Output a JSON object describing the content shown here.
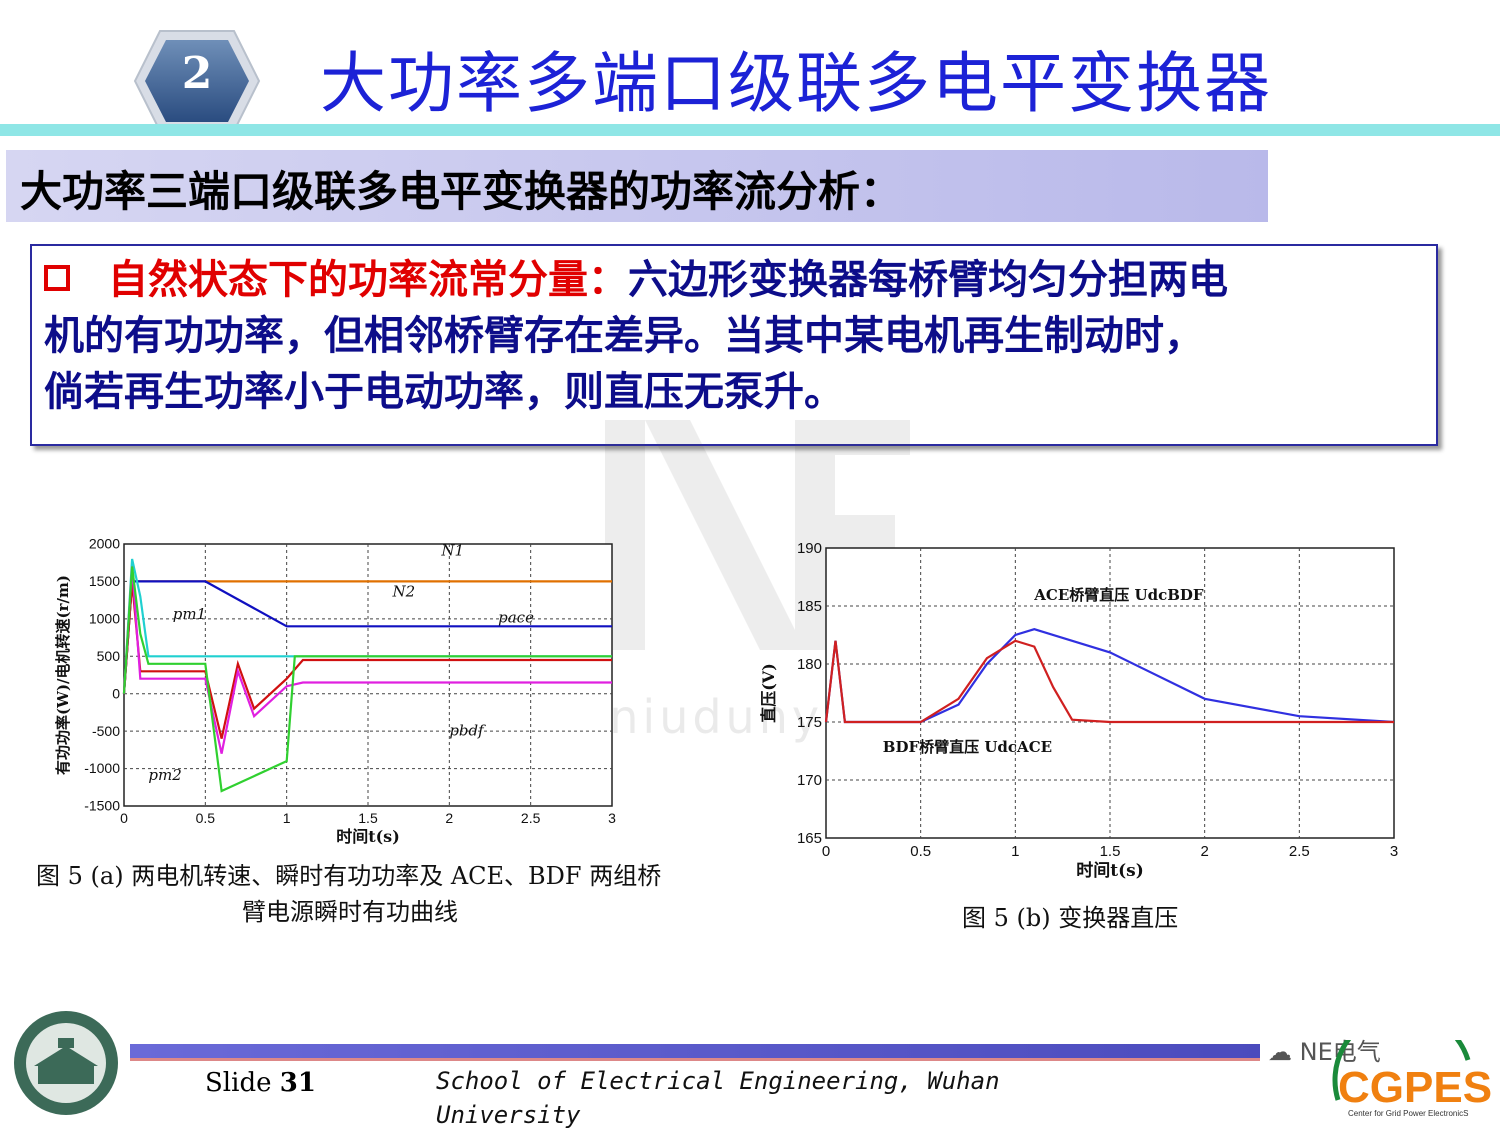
{
  "header": {
    "slide_badge": "2",
    "title": "大功率多端口级联多电平变换器"
  },
  "section": {
    "heading": "大功率三端口级联多电平变换器的功率流分析："
  },
  "note": {
    "lead": "自然状态下的功率流常分量：",
    "body_line1": "六边形变换器每桥臂均匀分担两电",
    "body_line2": "机的有功功率，但相邻桥臂存在差异。当其中某电机再生制动时，",
    "body_line3": "倘若再生功率小于电动功率，则直压无泵升。"
  },
  "watermark": {
    "url": "www.niudunyan.com"
  },
  "figure_a": {
    "caption_line1": "图 5 (a)   两电机转速、瞬时有功功率及 ACE、BDF 两组桥",
    "caption_line2": "臂电源瞬时有功曲线"
  },
  "figure_b": {
    "caption": "图 5 (b)   变换器直压"
  },
  "footer": {
    "slide_label": "Slide",
    "slide_number": "31",
    "school": "School of Electrical Engineering, Wuhan University",
    "wechat": "NE电气",
    "logo_text": "CGPES",
    "logo_sub": "Center for Grid Power ElectronicS"
  },
  "chart_data": [
    {
      "type": "line",
      "ylabel": "有功功率(W)/电机转速(r/m)",
      "xlabel": "时间t(s)",
      "xlim": [
        0,
        3
      ],
      "ylim": [
        -1500,
        2000
      ],
      "x_ticks": [
        "0",
        "0.5",
        "1",
        "1.5",
        "2",
        "2.5",
        "3"
      ],
      "y_ticks": [
        "2000",
        "1500",
        "1000",
        "500",
        "0",
        "-500",
        "-1000",
        "-1500"
      ],
      "grid": true,
      "series": [
        {
          "name": "N1",
          "color": "#e07000",
          "x": [
            0,
            0.05,
            0.1,
            3
          ],
          "y": [
            0,
            1500,
            1500,
            1500
          ]
        },
        {
          "name": "N2",
          "color": "#1010c0",
          "x": [
            0,
            0.05,
            0.5,
            1.0,
            3
          ],
          "y": [
            0,
            1500,
            1500,
            900,
            900
          ]
        },
        {
          "name": "pm1",
          "color": "#20d0d0",
          "x": [
            0,
            0.05,
            0.1,
            0.15,
            0.5,
            1.0,
            3
          ],
          "y": [
            0,
            1800,
            1300,
            500,
            500,
            500,
            500
          ]
        },
        {
          "name": "pace",
          "color": "#d01010",
          "x": [
            0,
            0.05,
            0.1,
            0.5,
            0.6,
            0.7,
            0.8,
            1.0,
            1.1,
            3
          ],
          "y": [
            0,
            1500,
            300,
            300,
            -600,
            400,
            -200,
            200,
            450,
            450
          ]
        },
        {
          "name": "pbdf",
          "color": "#e020e0",
          "x": [
            0,
            0.05,
            0.1,
            0.5,
            0.6,
            0.7,
            0.8,
            1.0,
            1.1,
            3
          ],
          "y": [
            0,
            1700,
            200,
            200,
            -800,
            300,
            -300,
            100,
            150,
            150
          ]
        },
        {
          "name": "pm2",
          "color": "#30d030",
          "x": [
            0,
            0.05,
            0.1,
            0.15,
            0.5,
            0.6,
            0.8,
            1.0,
            1.05,
            3
          ],
          "y": [
            0,
            1700,
            800,
            400,
            400,
            -1300,
            -1100,
            -900,
            500,
            500
          ]
        }
      ],
      "annotations": [
        "N1",
        "N2",
        "pm1",
        "pace",
        "pbdf",
        "pm2"
      ]
    },
    {
      "type": "line",
      "ylabel": "直压(V)",
      "xlabel": "时间t(s)",
      "xlim": [
        0,
        3
      ],
      "ylim": [
        165,
        190
      ],
      "x_ticks": [
        "0",
        "0.5",
        "1",
        "1.5",
        "2",
        "2.5",
        "3"
      ],
      "y_ticks": [
        "190",
        "185",
        "180",
        "175",
        "170",
        "165"
      ],
      "grid": true,
      "series": [
        {
          "name": "UdcBDF",
          "color": "#3030e0",
          "x": [
            0,
            0.05,
            0.1,
            0.5,
            0.7,
            0.85,
            1.0,
            1.1,
            1.5,
            2.0,
            2.5,
            3.0
          ],
          "y": [
            175,
            182,
            175,
            175,
            176.5,
            180,
            182.5,
            183,
            181,
            177,
            175.5,
            175
          ]
        },
        {
          "name": "UdcACE",
          "color": "#d02020",
          "x": [
            0,
            0.05,
            0.1,
            0.5,
            0.7,
            0.85,
            1.0,
            1.1,
            1.2,
            1.3,
            1.5,
            3.0
          ],
          "y": [
            175,
            182,
            175,
            175,
            177,
            180.5,
            182,
            181.5,
            178,
            175.2,
            175,
            175
          ]
        }
      ],
      "annotations": [
        "ACE桥臂直压 UdcBDF",
        "BDF桥臂直压 UdcACE"
      ]
    }
  ]
}
